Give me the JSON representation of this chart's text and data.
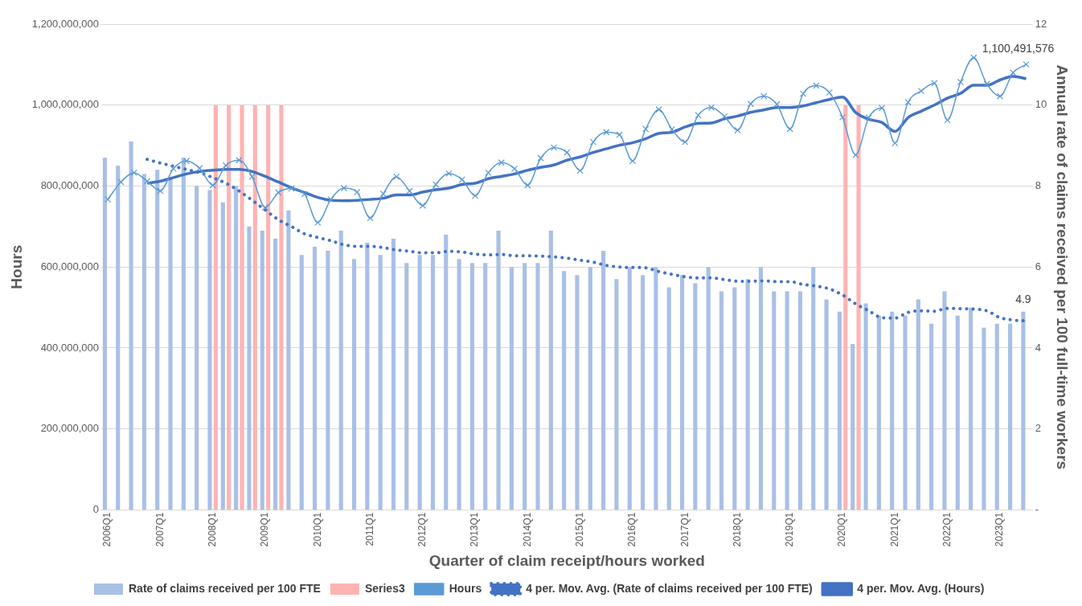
{
  "chart_data": {
    "type": "bar",
    "xlabel": "Quarter of claim receipt/hours worked",
    "ylabel": "Hours",
    "y2label": "Annual rate of claims received per 100 full-time workers",
    "categories": [
      "2006Q1",
      null,
      null,
      null,
      "2007Q1",
      null,
      null,
      null,
      "2008Q1",
      null,
      null,
      null,
      "2009Q1",
      null,
      null,
      null,
      "2010Q1",
      null,
      null,
      null,
      "2011Q1",
      null,
      null,
      null,
      "2012Q1",
      null,
      null,
      null,
      "2013Q1",
      null,
      null,
      null,
      "2014Q1",
      null,
      null,
      null,
      "2015Q1",
      null,
      null,
      null,
      "2016Q1",
      null,
      null,
      null,
      "2017Q1",
      null,
      null,
      null,
      "2018Q1",
      null,
      null,
      null,
      "2019Q1",
      null,
      null,
      null,
      "2020Q1",
      null,
      null,
      null,
      "2021Q1",
      null,
      null,
      null,
      "2022Q1",
      null,
      null,
      null,
      "2023Q1",
      null,
      null
    ],
    "series": [
      {
        "name": "Rate of claims received per 100 FTE",
        "axis": "y2",
        "color": "#a9c0e6",
        "values": [
          8.7,
          8.5,
          9.1,
          8.3,
          8.4,
          8.2,
          8.7,
          8.0,
          7.9,
          7.6,
          8.0,
          7.0,
          6.9,
          6.7,
          7.4,
          6.3,
          6.5,
          6.4,
          6.9,
          6.2,
          6.6,
          6.3,
          6.7,
          6.1,
          6.3,
          6.3,
          6.8,
          6.2,
          6.1,
          6.1,
          6.9,
          6.0,
          6.1,
          6.1,
          6.9,
          5.9,
          5.8,
          6.0,
          6.4,
          5.7,
          6.0,
          5.8,
          6.0,
          5.5,
          5.8,
          5.6,
          6.0,
          5.4,
          5.5,
          5.7,
          6.0,
          5.4,
          5.4,
          5.4,
          6.0,
          5.2,
          4.9,
          4.1,
          5.1,
          4.8,
          4.9,
          4.8,
          5.2,
          4.6,
          5.4,
          4.8,
          5.0,
          4.5,
          4.6,
          4.6,
          4.9
        ],
        "value_labels": [
          null,
          null,
          null,
          null,
          null,
          null,
          null,
          null,
          null,
          null,
          null,
          null,
          null,
          null,
          null,
          null,
          null,
          null,
          null,
          null,
          null,
          null,
          null,
          null,
          null,
          null,
          null,
          null,
          null,
          null,
          null,
          null,
          null,
          null,
          null,
          null,
          null,
          null,
          null,
          null,
          null,
          null,
          null,
          null,
          null,
          null,
          null,
          null,
          null,
          null,
          null,
          null,
          null,
          null,
          null,
          null,
          null,
          null,
          null,
          null,
          null,
          null,
          null,
          null,
          null,
          null,
          null,
          null,
          null,
          null,
          "4.9"
        ]
      },
      {
        "name": "Series3",
        "type": "bar",
        "axis": "y2",
        "color": "#ffb3b3",
        "values": [
          null,
          null,
          null,
          null,
          null,
          null,
          null,
          null,
          10,
          10,
          10,
          10,
          10,
          10,
          null,
          null,
          null,
          null,
          null,
          null,
          null,
          null,
          null,
          null,
          null,
          null,
          null,
          null,
          null,
          null,
          null,
          null,
          null,
          null,
          null,
          null,
          null,
          null,
          null,
          null,
          null,
          null,
          null,
          null,
          null,
          null,
          null,
          null,
          null,
          null,
          null,
          null,
          null,
          null,
          null,
          null,
          10,
          10,
          null,
          null,
          null,
          null,
          null,
          null,
          null,
          null,
          null,
          null,
          null,
          null,
          null
        ]
      },
      {
        "name": "Hours",
        "type": "line",
        "axis": "y",
        "color": "#5b9bd5",
        "marker": "cross",
        "line_style": "solid",
        "values": [
          767000000,
          810000000,
          833000000,
          812000000,
          788000000,
          843000000,
          862000000,
          844000000,
          802000000,
          851000000,
          864000000,
          823000000,
          747000000,
          784000000,
          794000000,
          780000000,
          710000000,
          767000000,
          795000000,
          785000000,
          721000000,
          781000000,
          823000000,
          788000000,
          752000000,
          804000000,
          831000000,
          816000000,
          776000000,
          833000000,
          858000000,
          843000000,
          802000000,
          869000000,
          895000000,
          883000000,
          838000000,
          909000000,
          933000000,
          927000000,
          862000000,
          941000000,
          989000000,
          940000000,
          909000000,
          975000000,
          994000000,
          972000000,
          938000000,
          1003000000,
          1022000000,
          1002000000,
          941000000,
          1028000000,
          1048000000,
          1031000000,
          970000000,
          877000000,
          969000000,
          993000000,
          906000000,
          1007000000,
          1035000000,
          1054000000,
          963000000,
          1057000000,
          1117000000,
          1052000000,
          1022000000,
          1080000000,
          1100491576
        ],
        "value_labels": [
          null,
          null,
          null,
          null,
          null,
          null,
          null,
          null,
          null,
          null,
          null,
          null,
          null,
          null,
          null,
          null,
          null,
          null,
          null,
          null,
          null,
          null,
          null,
          null,
          null,
          null,
          null,
          null,
          null,
          null,
          null,
          null,
          null,
          null,
          null,
          null,
          null,
          null,
          null,
          null,
          null,
          null,
          null,
          null,
          null,
          null,
          null,
          null,
          null,
          null,
          null,
          null,
          null,
          null,
          null,
          null,
          null,
          null,
          null,
          null,
          null,
          null,
          null,
          null,
          null,
          null,
          null,
          null,
          null,
          null,
          "1,100,491,576"
        ]
      },
      {
        "name": "4 per. Mov. Avg. (Rate of claims received per 100 FTE)",
        "type": "line",
        "axis": "y2",
        "color": "#4472c4",
        "marker": "none",
        "line_style": "dotted",
        "values": [
          null,
          null,
          null,
          8.66,
          8.57,
          8.49,
          8.41,
          8.33,
          8.21,
          8.07,
          7.88,
          7.65,
          7.41,
          7.17,
          7.0,
          6.82,
          6.73,
          6.65,
          6.55,
          6.51,
          6.51,
          6.48,
          6.42,
          6.39,
          6.35,
          6.35,
          6.39,
          6.37,
          6.32,
          6.3,
          6.31,
          6.28,
          6.28,
          6.27,
          6.25,
          6.22,
          6.17,
          6.12,
          6.04,
          6.0,
          5.99,
          5.98,
          5.89,
          5.82,
          5.76,
          5.73,
          5.73,
          5.69,
          5.65,
          5.65,
          5.66,
          5.64,
          5.64,
          5.57,
          5.53,
          5.46,
          5.31,
          5.09,
          4.92,
          4.75,
          4.74,
          4.88,
          4.92,
          4.91,
          4.98,
          4.97,
          4.96,
          4.92,
          4.75,
          4.69,
          4.67
        ]
      },
      {
        "name": "4 per. Mov. Avg. (Hours)",
        "type": "line",
        "axis": "y",
        "color": "#4472c4",
        "marker": "none",
        "line_style": "solid",
        "values": [
          null,
          null,
          null,
          807000000,
          812000000,
          821000000,
          830000000,
          836000000,
          839000000,
          841000000,
          841000000,
          836000000,
          824000000,
          810000000,
          796000000,
          784000000,
          772000000,
          765000000,
          764000000,
          765000000,
          767000000,
          770000000,
          778000000,
          778000000,
          785000000,
          791000000,
          795000000,
          804000000,
          807000000,
          818000000,
          824000000,
          830000000,
          839000000,
          846000000,
          852000000,
          864000000,
          872000000,
          883000000,
          892000000,
          901000000,
          907000000,
          917000000,
          930000000,
          933000000,
          946000000,
          955000000,
          956000000,
          966000000,
          973000000,
          982000000,
          988000000,
          994000000,
          994000000,
          998000000,
          1006000000,
          1014000000,
          1020000000,
          982000000,
          965000000,
          957000000,
          935000000,
          969000000,
          985000000,
          1000000000,
          1017000000,
          1029000000,
          1049000000,
          1049000000,
          1062000000,
          1071000000,
          1065000000
        ]
      }
    ],
    "ylim": [
      0,
      1200000000
    ],
    "yticks": [
      {
        "value": 0,
        "label": "0"
      },
      {
        "value": 200000000,
        "label": "200,000,000"
      },
      {
        "value": 400000000,
        "label": "400,000,000"
      },
      {
        "value": 600000000,
        "label": "600,000,000"
      },
      {
        "value": 800000000,
        "label": "800,000,000"
      },
      {
        "value": 1000000000,
        "label": "1,000,000,000"
      },
      {
        "value": 1200000000,
        "label": "1,200,000,000"
      }
    ],
    "y2lim": [
      0,
      12
    ],
    "y2ticks": [
      {
        "value": 0,
        "label": "-"
      },
      2,
      4,
      6,
      8,
      10,
      12
    ],
    "grid": "y",
    "legend": "bottom"
  }
}
